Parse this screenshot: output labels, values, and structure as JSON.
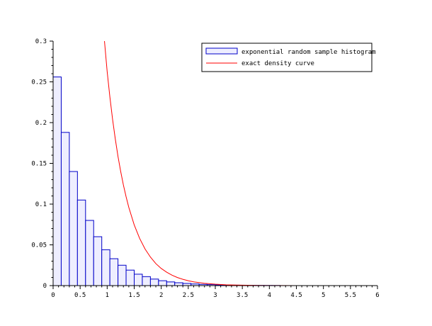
{
  "chart_data": {
    "type": "bar",
    "title": "",
    "xlabel": "",
    "ylabel": "",
    "xlim": [
      0,
      6
    ],
    "ylim": [
      0,
      0.3
    ],
    "grid": false,
    "legend_position": "top-right",
    "x_ticks": [
      {
        "value": 0,
        "label": "0"
      },
      {
        "value": 0.5,
        "label": "0.5"
      },
      {
        "value": 1,
        "label": "1"
      },
      {
        "value": 1.5,
        "label": "1.5"
      },
      {
        "value": 2,
        "label": "2"
      },
      {
        "value": 2.5,
        "label": "2.5"
      },
      {
        "value": 3,
        "label": "3"
      },
      {
        "value": 3.5,
        "label": "3.5"
      },
      {
        "value": 4,
        "label": "4"
      },
      {
        "value": 4.5,
        "label": "4.5"
      },
      {
        "value": 5,
        "label": "5"
      },
      {
        "value": 5.5,
        "label": "5.5"
      },
      {
        "value": 6,
        "label": "6"
      }
    ],
    "y_ticks": [
      {
        "value": 0,
        "label": "0"
      },
      {
        "value": 0.05,
        "label": "0.05"
      },
      {
        "value": 0.1,
        "label": "0.1"
      },
      {
        "value": 0.15,
        "label": "0.15"
      },
      {
        "value": 0.2,
        "label": "0.2"
      },
      {
        "value": 0.25,
        "label": "0.25"
      },
      {
        "value": 0.3,
        "label": "0.3"
      }
    ],
    "series": [
      {
        "name": "exponential random sample histogram",
        "type": "histogram",
        "color": "#0000c8",
        "fill": "#eeeeff",
        "bins": [
          {
            "x0": 0.0,
            "x1": 0.15,
            "value": 0.256
          },
          {
            "x0": 0.15,
            "x1": 0.3,
            "value": 0.188
          },
          {
            "x0": 0.3,
            "x1": 0.45,
            "value": 0.14
          },
          {
            "x0": 0.45,
            "x1": 0.6,
            "value": 0.105
          },
          {
            "x0": 0.6,
            "x1": 0.75,
            "value": 0.08
          },
          {
            "x0": 0.75,
            "x1": 0.9,
            "value": 0.06
          },
          {
            "x0": 0.9,
            "x1": 1.05,
            "value": 0.044
          },
          {
            "x0": 1.05,
            "x1": 1.2,
            "value": 0.033
          },
          {
            "x0": 1.2,
            "x1": 1.35,
            "value": 0.025
          },
          {
            "x0": 1.35,
            "x1": 1.5,
            "value": 0.019
          },
          {
            "x0": 1.5,
            "x1": 1.65,
            "value": 0.014
          },
          {
            "x0": 1.65,
            "x1": 1.8,
            "value": 0.011
          },
          {
            "x0": 1.8,
            "x1": 1.95,
            "value": 0.008
          },
          {
            "x0": 1.95,
            "x1": 2.1,
            "value": 0.006
          },
          {
            "x0": 2.1,
            "x1": 2.25,
            "value": 0.0045
          },
          {
            "x0": 2.25,
            "x1": 2.4,
            "value": 0.0035
          },
          {
            "x0": 2.4,
            "x1": 2.55,
            "value": 0.0027
          },
          {
            "x0": 2.55,
            "x1": 2.7,
            "value": 0.002
          },
          {
            "x0": 2.7,
            "x1": 2.85,
            "value": 0.0015
          },
          {
            "x0": 2.85,
            "x1": 3.0,
            "value": 0.0012
          },
          {
            "x0": 3.0,
            "x1": 3.15,
            "value": 0.0009
          },
          {
            "x0": 3.15,
            "x1": 3.3,
            "value": 0.0007
          },
          {
            "x0": 3.3,
            "x1": 3.45,
            "value": 0.0005
          },
          {
            "x0": 3.45,
            "x1": 3.6,
            "value": 0.0004
          },
          {
            "x0": 3.6,
            "x1": 3.75,
            "value": 0.0003
          },
          {
            "x0": 3.75,
            "x1": 3.9,
            "value": 0.00025
          },
          {
            "x0": 3.9,
            "x1": 4.05,
            "value": 0.0002
          },
          {
            "x0": 4.05,
            "x1": 4.2,
            "value": 0.00015
          }
        ]
      },
      {
        "name": "exact density curve",
        "type": "line",
        "color": "#ff0000",
        "x": [
          0.95,
          1.0,
          1.05,
          1.1,
          1.15,
          1.2,
          1.25,
          1.3,
          1.35,
          1.4,
          1.5,
          1.6,
          1.7,
          1.8,
          1.9,
          2.0,
          2.1,
          2.2,
          2.3,
          2.4,
          2.5,
          2.6,
          2.8,
          3.0,
          3.2,
          3.4,
          3.6,
          3.8,
          4.0,
          4.2,
          4.5,
          5.0,
          5.5,
          6.0
        ],
        "y": [
          0.3,
          0.2625,
          0.2315,
          0.204,
          0.18,
          0.1585,
          0.14,
          0.1235,
          0.109,
          0.096,
          0.0745,
          0.058,
          0.045,
          0.035,
          0.027,
          0.021,
          0.0165,
          0.0128,
          0.0099,
          0.0077,
          0.006,
          0.0046,
          0.0028,
          0.0017,
          0.001,
          0.0006,
          0.0004,
          0.0002,
          0.00014,
          8e-05,
          4e-05,
          1e-05,
          0.0,
          0.0
        ]
      }
    ]
  }
}
